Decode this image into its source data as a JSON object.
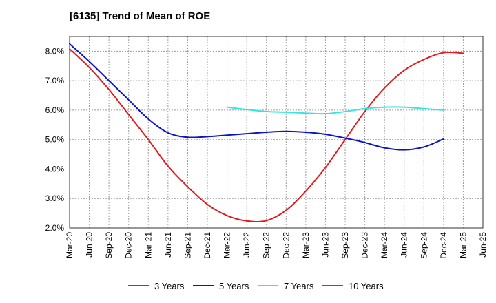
{
  "chart_data": {
    "type": "line",
    "title": "[6135]  Trend of Mean of ROE",
    "xlabel": "",
    "ylabel": "",
    "x_tick_labels": [
      "Mar-20",
      "Jun-20",
      "Sep-20",
      "Dec-20",
      "Mar-21",
      "Jun-21",
      "Sep-21",
      "Dec-21",
      "Mar-22",
      "Jun-22",
      "Sep-22",
      "Dec-22",
      "Mar-23",
      "Jun-23",
      "Sep-23",
      "Dec-23",
      "Mar-24",
      "Jun-24",
      "Sep-24",
      "Dec-24",
      "Mar-25",
      "Jun-25"
    ],
    "y_tick_labels": [
      "2.0%",
      "3.0%",
      "4.0%",
      "5.0%",
      "6.0%",
      "7.0%",
      "8.0%"
    ],
    "ylim": [
      2.0,
      8.5
    ],
    "grid": true,
    "legend_position": "bottom",
    "series": [
      {
        "name": "3 Years",
        "color": "#e31a1c",
        "start_index": 0,
        "values": [
          8.08,
          7.45,
          6.7,
          5.85,
          5.0,
          4.1,
          3.4,
          2.8,
          2.42,
          2.24,
          2.25,
          2.6,
          3.25,
          4.05,
          5.0,
          5.95,
          6.75,
          7.35,
          7.72,
          7.95,
          7.93
        ]
      },
      {
        "name": "5 Years",
        "color": "#0a14c8",
        "start_index": 0,
        "values": [
          8.25,
          7.65,
          7.0,
          6.35,
          5.7,
          5.23,
          5.08,
          5.1,
          5.15,
          5.2,
          5.25,
          5.28,
          5.25,
          5.18,
          5.05,
          4.9,
          4.72,
          4.65,
          4.75,
          5.02
        ]
      },
      {
        "name": "7 Years",
        "color": "#33e5e5",
        "start_index": 8,
        "values": [
          6.1,
          6.02,
          5.95,
          5.93,
          5.9,
          5.88,
          5.95,
          6.05,
          6.1,
          6.1,
          6.05,
          6.0
        ]
      },
      {
        "name": "10 Years",
        "color": "#1a8c1a",
        "start_index": 0,
        "values": []
      }
    ]
  }
}
